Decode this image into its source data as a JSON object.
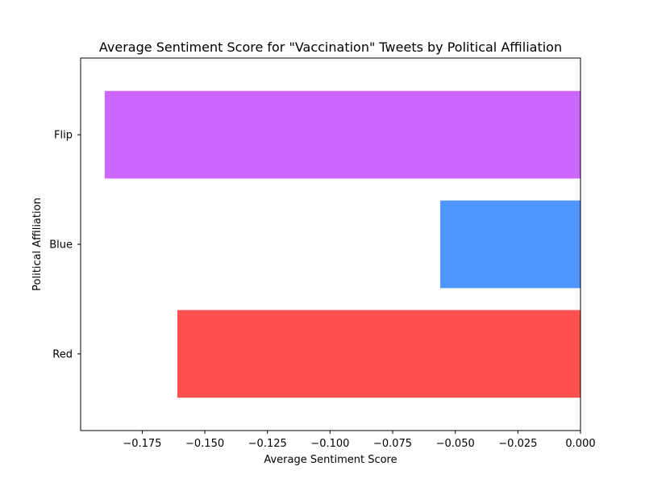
{
  "chart_data": {
    "type": "bar",
    "orientation": "horizontal",
    "title": "Average Sentiment Score for \"Vaccination\" Tweets by Political Affiliation",
    "xlabel": "Average Sentiment Score",
    "ylabel": "Political Affiliation",
    "categories": [
      "Red",
      "Blue",
      "Flip"
    ],
    "values": [
      -0.161,
      -0.056,
      -0.19
    ],
    "colors": [
      "#ff5050",
      "#4f95ff",
      "#cc66ff"
    ],
    "xlim": [
      -0.1996,
      0.0
    ],
    "xticks": [
      -0.175,
      -0.15,
      -0.125,
      -0.1,
      -0.075,
      -0.05,
      -0.025,
      0.0
    ],
    "xtick_labels": [
      "−0.175",
      "−0.150",
      "−0.125",
      "−0.100",
      "−0.075",
      "−0.050",
      "−0.025",
      "0.000"
    ],
    "grid": false,
    "legend": "none"
  }
}
